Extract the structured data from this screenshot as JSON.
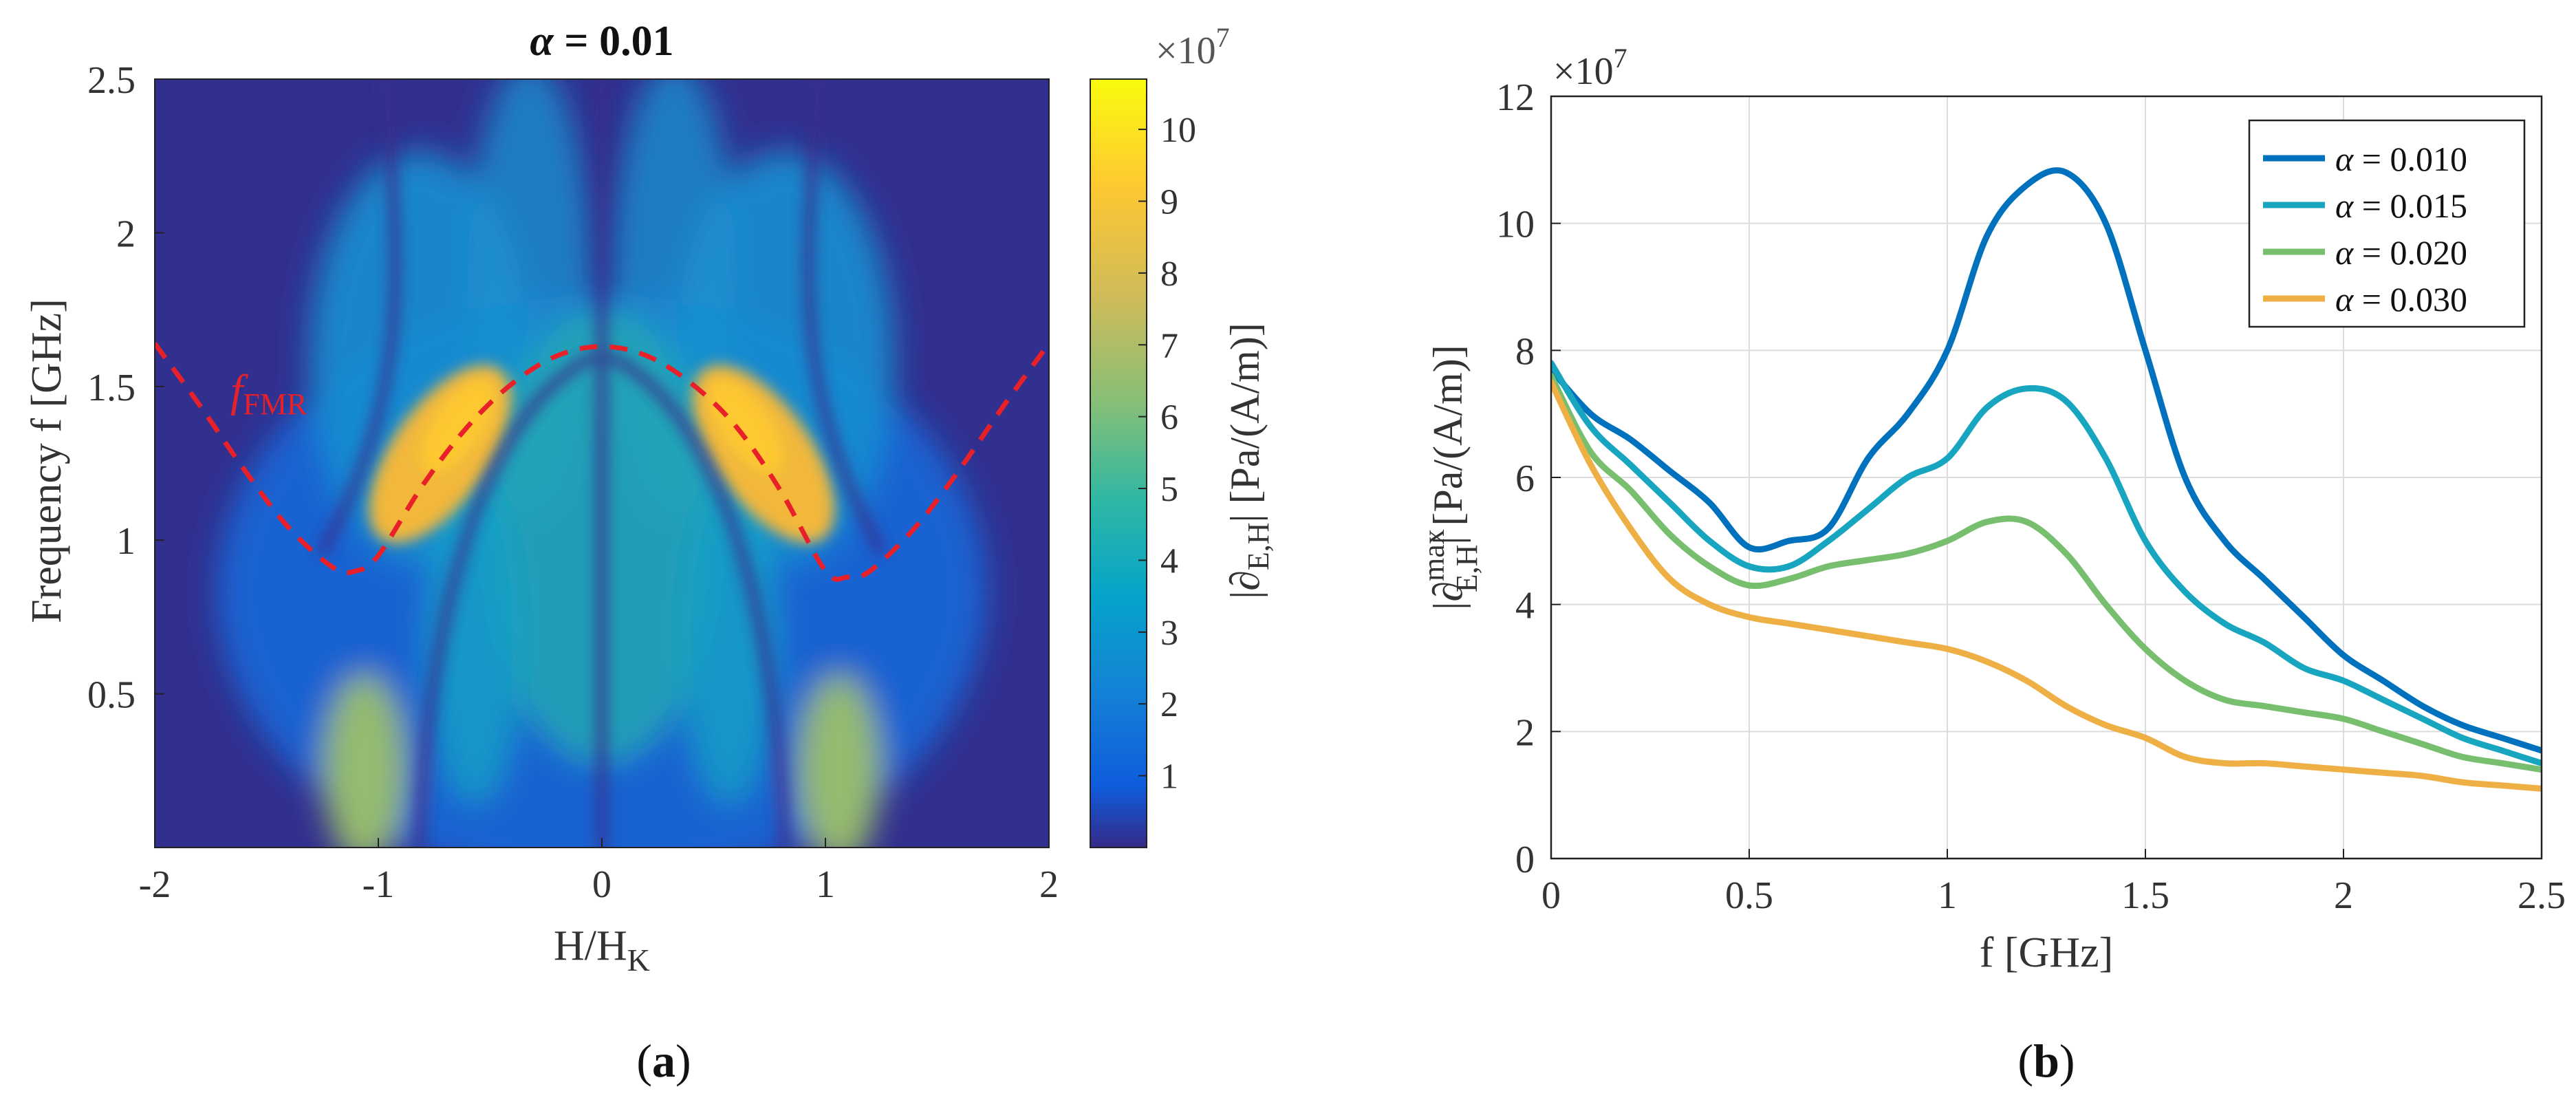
{
  "panels": {
    "a": {
      "caption_open": "(",
      "caption_letter": "a",
      "caption_close": ")"
    },
    "b": {
      "caption_open": "(",
      "caption_letter": "b",
      "caption_close": ")"
    }
  },
  "chart_data": [
    {
      "type": "heatmap",
      "title": "α = 0.01",
      "title_symbol": "α",
      "title_rest": " = 0.01",
      "xlabel_main": "H/H",
      "xlabel_sub": "K",
      "ylabel": "Frequency f [GHz]",
      "xlim": [
        -2,
        2
      ],
      "ylim": [
        0,
        2.5
      ],
      "xticks": [
        -2,
        -1,
        0,
        1,
        2
      ],
      "xtick_labels": [
        "-2",
        "-1",
        "0",
        "1",
        "2"
      ],
      "yticks": [
        0.5,
        1,
        1.5,
        2,
        2.5
      ],
      "ytick_labels": [
        "0.5",
        "1",
        "1.5",
        "2",
        "2.5"
      ],
      "colorbar": {
        "clim": [
          0,
          10.7
        ],
        "ticks": [
          1,
          2,
          3,
          4,
          5,
          6,
          7,
          8,
          9,
          10
        ],
        "tick_labels": [
          "1",
          "2",
          "3",
          "4",
          "5",
          "6",
          "7",
          "8",
          "9",
          "10"
        ],
        "exponent_label": "×10",
        "exponent_power": "7",
        "label_pre": "|∂",
        "label_sub": "E,H",
        "label_post": "| [Pa/(A/m)]",
        "colors": [
          "#352a87",
          "#0f5cdd",
          "#1481d6",
          "#06a4ca",
          "#2eb7a4",
          "#87bf77",
          "#d1bb59",
          "#fec832",
          "#f9fb0e"
        ]
      },
      "annotation": {
        "text_main": "f",
        "text_sub": "FMR",
        "color": "#e8202a"
      },
      "fmr_curve": {
        "h": [
          -2.0,
          -1.8,
          -1.6,
          -1.4,
          -1.2,
          -1.1,
          -1.0,
          -0.8,
          -0.6,
          -0.4,
          -0.2,
          0.0,
          0.2,
          0.4,
          0.6,
          0.8,
          1.0,
          1.1,
          1.2,
          1.4,
          1.6,
          1.8,
          2.0
        ],
        "f": [
          1.64,
          1.44,
          1.23,
          1.04,
          0.91,
          0.9,
          0.95,
          1.18,
          1.37,
          1.51,
          1.6,
          1.63,
          1.6,
          1.51,
          1.37,
          1.16,
          0.9,
          0.88,
          0.9,
          1.04,
          1.23,
          1.44,
          1.64
        ]
      }
    },
    {
      "type": "line",
      "xlabel": "f [GHz]",
      "ylabel_pre": "|∂",
      "ylabel_sup": "max",
      "ylabel_sub": "E,H",
      "ylabel_post": "| [Pa/(A/m)]",
      "xlim": [
        0,
        2.5
      ],
      "ylim": [
        0,
        12
      ],
      "xticks": [
        0,
        0.5,
        1,
        1.5,
        2,
        2.5
      ],
      "xtick_labels": [
        "0",
        "0.5",
        "1",
        "1.5",
        "2",
        "2.5"
      ],
      "yticks": [
        0,
        2,
        4,
        6,
        8,
        10,
        12
      ],
      "ytick_labels": [
        "0",
        "2",
        "4",
        "6",
        "8",
        "10",
        "12"
      ],
      "exponent_label": "×10",
      "exponent_power": "7",
      "grid": true,
      "legend_position": "top-right",
      "x": [
        0,
        0.1,
        0.2,
        0.3,
        0.4,
        0.5,
        0.6,
        0.7,
        0.8,
        0.9,
        1.0,
        1.1,
        1.2,
        1.3,
        1.4,
        1.5,
        1.6,
        1.7,
        1.8,
        1.9,
        2.0,
        2.1,
        2.2,
        2.3,
        2.4,
        2.5
      ],
      "series": [
        {
          "name": "α = 0.010",
          "symbol": "α",
          "value_text": " = 0.010",
          "color": "#0072bd",
          "values": [
            7.7,
            7.0,
            6.6,
            6.1,
            5.6,
            4.9,
            5.0,
            5.2,
            6.3,
            7.0,
            8.0,
            9.8,
            10.6,
            10.8,
            10.0,
            8.0,
            6.0,
            5.0,
            4.4,
            3.8,
            3.2,
            2.8,
            2.4,
            2.1,
            1.9,
            1.7
          ]
        },
        {
          "name": "α = 0.015",
          "symbol": "α",
          "value_text": " = 0.015",
          "color": "#18a5c0",
          "values": [
            7.8,
            6.8,
            6.2,
            5.6,
            5.0,
            4.6,
            4.6,
            5.0,
            5.5,
            6.0,
            6.3,
            7.1,
            7.4,
            7.2,
            6.3,
            5.0,
            4.2,
            3.7,
            3.4,
            3.0,
            2.8,
            2.5,
            2.2,
            1.9,
            1.7,
            1.5
          ]
        },
        {
          "name": "α = 0.020",
          "symbol": "α",
          "value_text": " = 0.020",
          "color": "#77be6e",
          "values": [
            7.6,
            6.4,
            5.8,
            5.1,
            4.6,
            4.3,
            4.4,
            4.6,
            4.7,
            4.8,
            5.0,
            5.3,
            5.3,
            4.8,
            4.0,
            3.3,
            2.8,
            2.5,
            2.4,
            2.3,
            2.2,
            2.0,
            1.8,
            1.6,
            1.5,
            1.4
          ]
        },
        {
          "name": "α = 0.030",
          "symbol": "α",
          "value_text": " = 0.030",
          "color": "#eeb044",
          "values": [
            7.5,
            6.2,
            5.2,
            4.4,
            4.0,
            3.8,
            3.7,
            3.6,
            3.5,
            3.4,
            3.3,
            3.1,
            2.8,
            2.4,
            2.1,
            1.9,
            1.6,
            1.5,
            1.5,
            1.45,
            1.4,
            1.35,
            1.3,
            1.2,
            1.15,
            1.1
          ]
        }
      ]
    }
  ]
}
